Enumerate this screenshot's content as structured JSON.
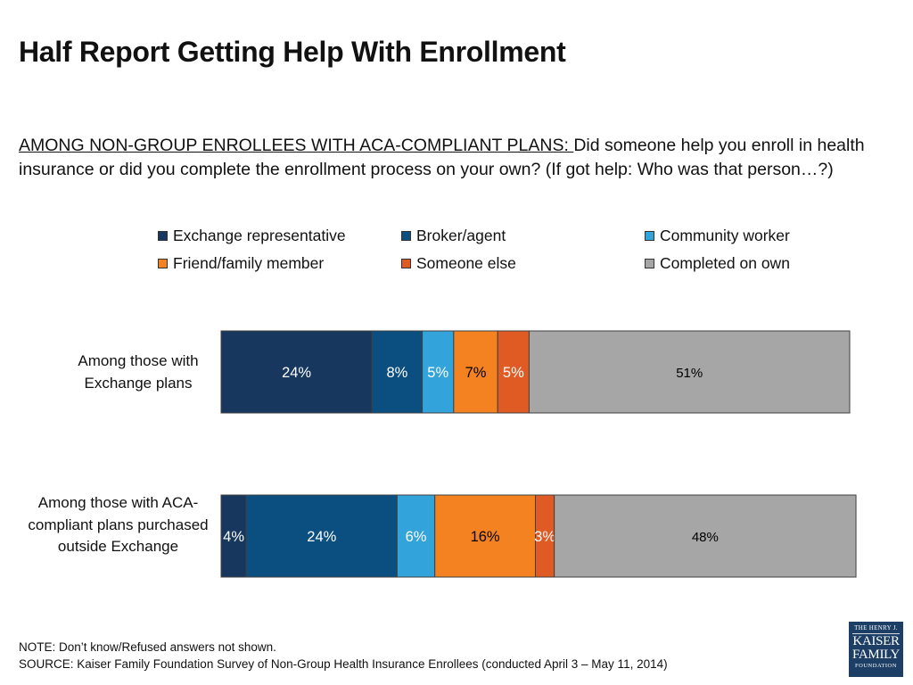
{
  "title": "Half Report Getting Help With Enrollment",
  "question": {
    "lead": "AMONG NON-GROUP ENROLLEES WITH ACA-COMPLIANT PLANS: ",
    "text": "Did someone help you enroll in health insurance or did you complete the enrollment process on your own? (If got help: Who was that person…?)"
  },
  "chart_data": {
    "type": "bar",
    "orientation": "horizontal",
    "stacked": true,
    "legend_position": "top",
    "categories": [
      "Among those with Exchange plans",
      "Among those with ACA-compliant plans purchased outside Exchange"
    ],
    "series": [
      {
        "name": "Exchange representative",
        "color": "#17375e",
        "label_color": "#ffffff",
        "values": [
          24,
          4
        ]
      },
      {
        "name": "Broker/agent",
        "color": "#0b4f81",
        "label_color": "#ffffff",
        "values": [
          8,
          24
        ]
      },
      {
        "name": "Community worker",
        "color": "#33a3dc",
        "label_color": "#ffffff",
        "values": [
          5,
          6
        ]
      },
      {
        "name": "Friend/family member",
        "color": "#f58220",
        "label_color": "#000000",
        "values": [
          7,
          16
        ]
      },
      {
        "name": "Someone else",
        "color": "#e05a24",
        "label_color": "#ffffff",
        "values": [
          5,
          3
        ]
      },
      {
        "name": "Completed on own",
        "color": "#a6a6a6",
        "label_color": "#000000",
        "values": [
          51,
          48
        ]
      }
    ],
    "data_labels": [
      [
        "24%",
        "8%",
        "5%",
        "7%",
        "5%",
        "51%"
      ],
      [
        "4%",
        "24%",
        "6%",
        "16%",
        "3%",
        "48%"
      ]
    ]
  },
  "footer": {
    "note": "NOTE: Don’t know/Refused answers not shown.",
    "source": "SOURCE: Kaiser Family Foundation Survey of Non-Group Health Insurance Enrollees (conducted April 3 – May 11, 2014)"
  },
  "logo": {
    "line1": "THE HENRY J.",
    "line2": "KAISER",
    "line3": "FAMILY",
    "line4": "FOUNDATION"
  }
}
